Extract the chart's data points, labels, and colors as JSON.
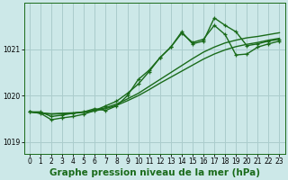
{
  "bg_color": "#cce8e8",
  "grid_color": "#aacccc",
  "line_color": "#1a6b1a",
  "title": "Graphe pression niveau de la mer (hPa)",
  "xlim": [
    -0.5,
    23.5
  ],
  "ylim": [
    1018.75,
    1022.0
  ],
  "yticks": [
    1019,
    1020,
    1021
  ],
  "xticks": [
    0,
    1,
    2,
    3,
    4,
    5,
    6,
    7,
    8,
    9,
    10,
    11,
    12,
    13,
    14,
    15,
    16,
    17,
    18,
    19,
    20,
    21,
    22,
    23
  ],
  "s1_x": [
    0,
    1,
    2,
    3,
    4,
    5,
    6,
    7,
    8,
    9,
    10,
    11,
    12,
    13,
    14,
    15,
    16,
    17,
    18,
    19,
    20,
    21,
    22,
    23
  ],
  "s1_y": [
    1019.65,
    1019.65,
    1019.55,
    1019.58,
    1019.62,
    1019.65,
    1019.72,
    1019.68,
    1019.78,
    1020.0,
    1020.35,
    1020.55,
    1020.82,
    1021.05,
    1021.38,
    1021.12,
    1021.18,
    1021.68,
    1021.52,
    1021.38,
    1021.08,
    1021.12,
    1021.18,
    1021.22
  ],
  "s2_x": [
    0,
    1,
    2,
    3,
    4,
    5,
    6,
    7,
    8,
    9,
    10,
    11,
    12,
    13,
    14,
    15,
    16,
    17,
    18,
    19,
    20,
    21,
    22,
    23
  ],
  "s2_y": [
    1019.65,
    1019.62,
    1019.48,
    1019.52,
    1019.55,
    1019.6,
    1019.68,
    1019.78,
    1019.88,
    1020.05,
    1020.25,
    1020.52,
    1020.82,
    1021.05,
    1021.35,
    1021.15,
    1021.22,
    1021.52,
    1021.32,
    1020.88,
    1020.9,
    1021.05,
    1021.12,
    1021.18
  ],
  "s3_x": [
    0,
    1,
    2,
    3,
    4,
    5,
    6,
    7,
    8,
    9,
    10,
    11,
    12,
    13,
    14,
    15,
    16,
    17,
    18,
    19,
    20,
    21,
    22,
    23
  ],
  "s3_y": [
    1019.65,
    1019.63,
    1019.61,
    1019.62,
    1019.63,
    1019.65,
    1019.69,
    1019.74,
    1019.82,
    1019.93,
    1020.05,
    1020.2,
    1020.35,
    1020.5,
    1020.65,
    1020.8,
    1020.94,
    1021.05,
    1021.14,
    1021.2,
    1021.25,
    1021.28,
    1021.32,
    1021.36
  ],
  "s4_x": [
    0,
    1,
    2,
    3,
    4,
    5,
    6,
    7,
    8,
    9,
    10,
    11,
    12,
    13,
    14,
    15,
    16,
    17,
    18,
    19,
    20,
    21,
    22,
    23
  ],
  "s4_y": [
    1019.65,
    1019.62,
    1019.6,
    1019.61,
    1019.62,
    1019.64,
    1019.67,
    1019.72,
    1019.79,
    1019.89,
    1020.0,
    1020.13,
    1020.27,
    1020.4,
    1020.53,
    1020.66,
    1020.79,
    1020.9,
    1020.99,
    1021.06,
    1021.11,
    1021.15,
    1021.2,
    1021.24
  ],
  "linewidth": 1.0,
  "markersize": 3.5,
  "title_fontsize": 7.5,
  "tick_fontsize": 5.5
}
